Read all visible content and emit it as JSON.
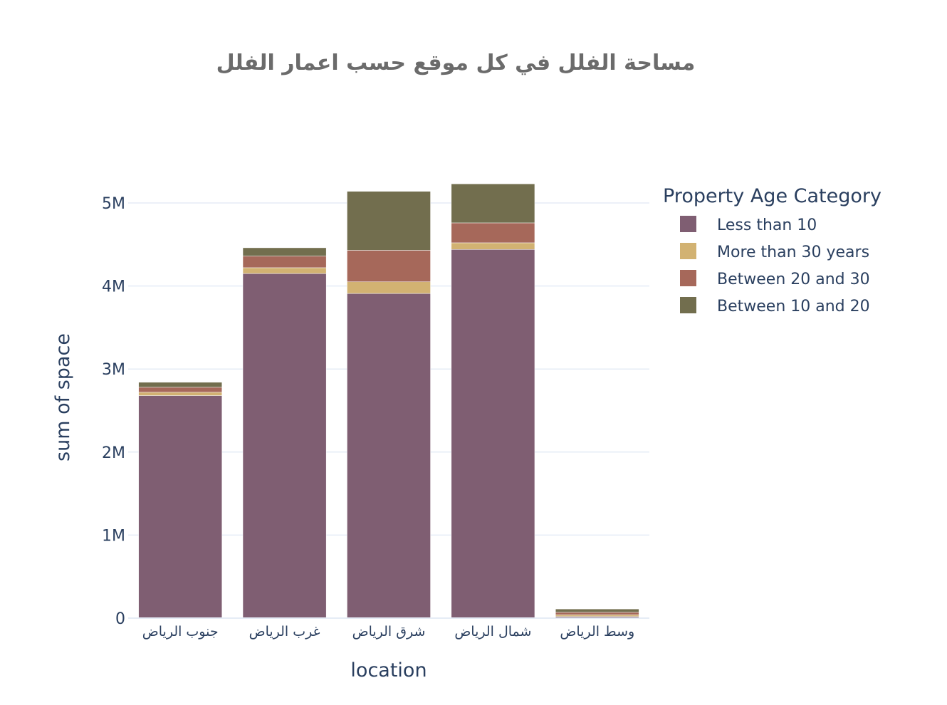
{
  "chart_data": {
    "type": "bar",
    "barmode": "stack",
    "title": "مساحة الفلل في كل موقع حسب اعمار الفلل",
    "xlabel": "location",
    "ylabel": "sum of space",
    "ylim": [
      0,
      5300000
    ],
    "y_ticks": [
      {
        "value": 0,
        "label": "0"
      },
      {
        "value": 1000000,
        "label": "1M"
      },
      {
        "value": 2000000,
        "label": "2M"
      },
      {
        "value": 3000000,
        "label": "3M"
      },
      {
        "value": 4000000,
        "label": "4M"
      },
      {
        "value": 5000000,
        "label": "5M"
      }
    ],
    "grid": true,
    "legend_title": "Property Age Category",
    "legend_position": "right",
    "categories": [
      "جنوب الرياض",
      "غرب الرياض",
      "شرق الرياض",
      "شمال الرياض",
      "وسط الرياض"
    ],
    "series": [
      {
        "name": "Less than 10",
        "color": "#7f5e72",
        "values": [
          2680000,
          4150000,
          3910000,
          4440000,
          20000
        ]
      },
      {
        "name": "More than 30 years",
        "color": "#d2b272",
        "values": [
          40000,
          70000,
          140000,
          80000,
          20000
        ]
      },
      {
        "name": "Between 20 and 30",
        "color": "#a6685a",
        "values": [
          60000,
          140000,
          380000,
          240000,
          30000
        ]
      },
      {
        "name": "Between 10 and 20",
        "color": "#726e4e",
        "values": [
          60000,
          100000,
          710000,
          470000,
          40000
        ]
      }
    ]
  }
}
